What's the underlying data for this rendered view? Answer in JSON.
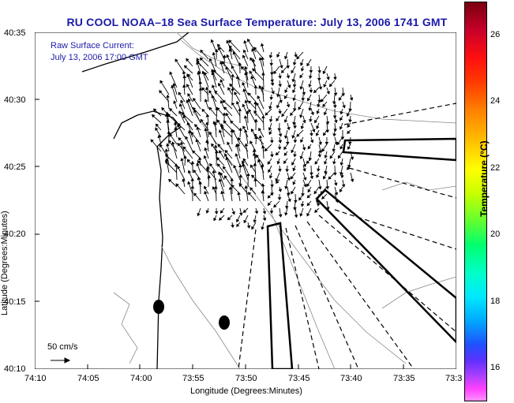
{
  "title": "RU COOL  NOAA–18  Sea Surface Temperature:  July 13, 2006 1741 GMT",
  "annotation": {
    "line1": "Raw Surface Current:",
    "line2": "July 13, 2006 17:00 GMT",
    "scale_label": "50 cm/s"
  },
  "axes": {
    "xlabel": "Longitude (Degrees:Minutes)",
    "ylabel": "Latitude (Degrees:Minutes)",
    "xticks": [
      "74:10",
      "74:05",
      "74:00",
      "73:55",
      "73:50",
      "73:45",
      "73:40",
      "73:35",
      "73:3"
    ],
    "yticks": [
      "40:35",
      "40:30",
      "40:25",
      "40:20",
      "40:15",
      "40:10"
    ]
  },
  "colorbar": {
    "label": "Temperature (°C)",
    "ticks": [
      "26",
      "24",
      "22",
      "20",
      "18",
      "16"
    ]
  },
  "colors": {
    "title": "#1a1aa8",
    "contour": "#888888"
  }
}
